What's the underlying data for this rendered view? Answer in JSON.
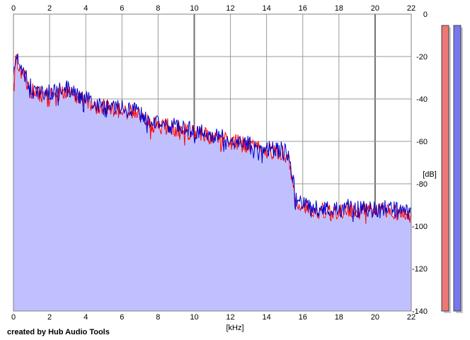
{
  "chart_data": {
    "type": "area",
    "xlabel": "[kHz]",
    "ylabel": "[dB]",
    "xlim": [
      0,
      22
    ],
    "ylim": [
      -140,
      0
    ],
    "x_ticks": [
      "0",
      "2",
      "4",
      "6",
      "8",
      "10",
      "12",
      "14",
      "16",
      "18",
      "20",
      "22"
    ],
    "y_ticks": [
      "0",
      "-20",
      "-40",
      "-60",
      "-80",
      "-100",
      "-120",
      "-140"
    ],
    "grid": true,
    "series": [
      {
        "color": "#ff0000",
        "x": [
          0,
          0.1,
          0.3,
          0.6,
          1,
          1.5,
          2,
          2.5,
          3,
          3.5,
          4,
          4.5,
          5,
          5.5,
          6,
          6.5,
          7,
          7.5,
          8,
          8.5,
          9,
          9.5,
          10,
          10.5,
          11,
          11.5,
          12,
          12.5,
          13,
          13.5,
          14,
          14.5,
          15,
          15.2,
          15.4,
          15.6,
          16,
          16.5,
          17,
          17.5,
          18,
          18.5,
          19,
          19.5,
          20,
          20.5,
          21,
          21.5,
          22
        ],
        "y": [
          -34,
          -22,
          -24,
          -30,
          -36,
          -38,
          -38,
          -37,
          -36,
          -39,
          -41,
          -43,
          -44,
          -45,
          -45,
          -46,
          -48,
          -51,
          -53,
          -53,
          -54,
          -55,
          -56,
          -56,
          -58,
          -59,
          -60,
          -61,
          -62,
          -63,
          -64,
          -65,
          -66,
          -68,
          -76,
          -88,
          -91,
          -92,
          -93,
          -93,
          -93,
          -92,
          -93,
          -93,
          -93,
          -92,
          -93,
          -94,
          -95
        ]
      },
      {
        "color": "#0000cc",
        "x": [
          0,
          0.1,
          0.3,
          0.6,
          1,
          1.5,
          2,
          2.5,
          3,
          3.5,
          4,
          4.5,
          5,
          5.5,
          6,
          6.5,
          7,
          7.5,
          8,
          8.5,
          9,
          9.5,
          10,
          10.5,
          11,
          11.5,
          12,
          12.5,
          13,
          13.5,
          14,
          14.5,
          15,
          15.2,
          15.4,
          15.6,
          16,
          16.5,
          17,
          17.5,
          18,
          18.5,
          19,
          19.5,
          20,
          20.5,
          21,
          21.5,
          22
        ],
        "y": [
          -33,
          -20,
          -22,
          -28,
          -35,
          -37,
          -37,
          -36,
          -35,
          -38,
          -40,
          -42,
          -43,
          -44,
          -44,
          -45,
          -47,
          -50,
          -52,
          -52,
          -53,
          -54,
          -55,
          -55,
          -57,
          -58,
          -59,
          -60,
          -61,
          -62,
          -63,
          -64,
          -64,
          -66,
          -74,
          -87,
          -90,
          -91,
          -92,
          -92,
          -92,
          -91,
          -92,
          -92,
          -92,
          -91,
          -92,
          -93,
          -94
        ]
      }
    ],
    "fill_color": "#c0c0ff",
    "level_meters": [
      {
        "color": "#ee7777",
        "level_db": -3
      },
      {
        "color": "#7777ee",
        "level_db": -3
      }
    ]
  },
  "footer": {
    "text": "created by Hub Audio Tools"
  }
}
